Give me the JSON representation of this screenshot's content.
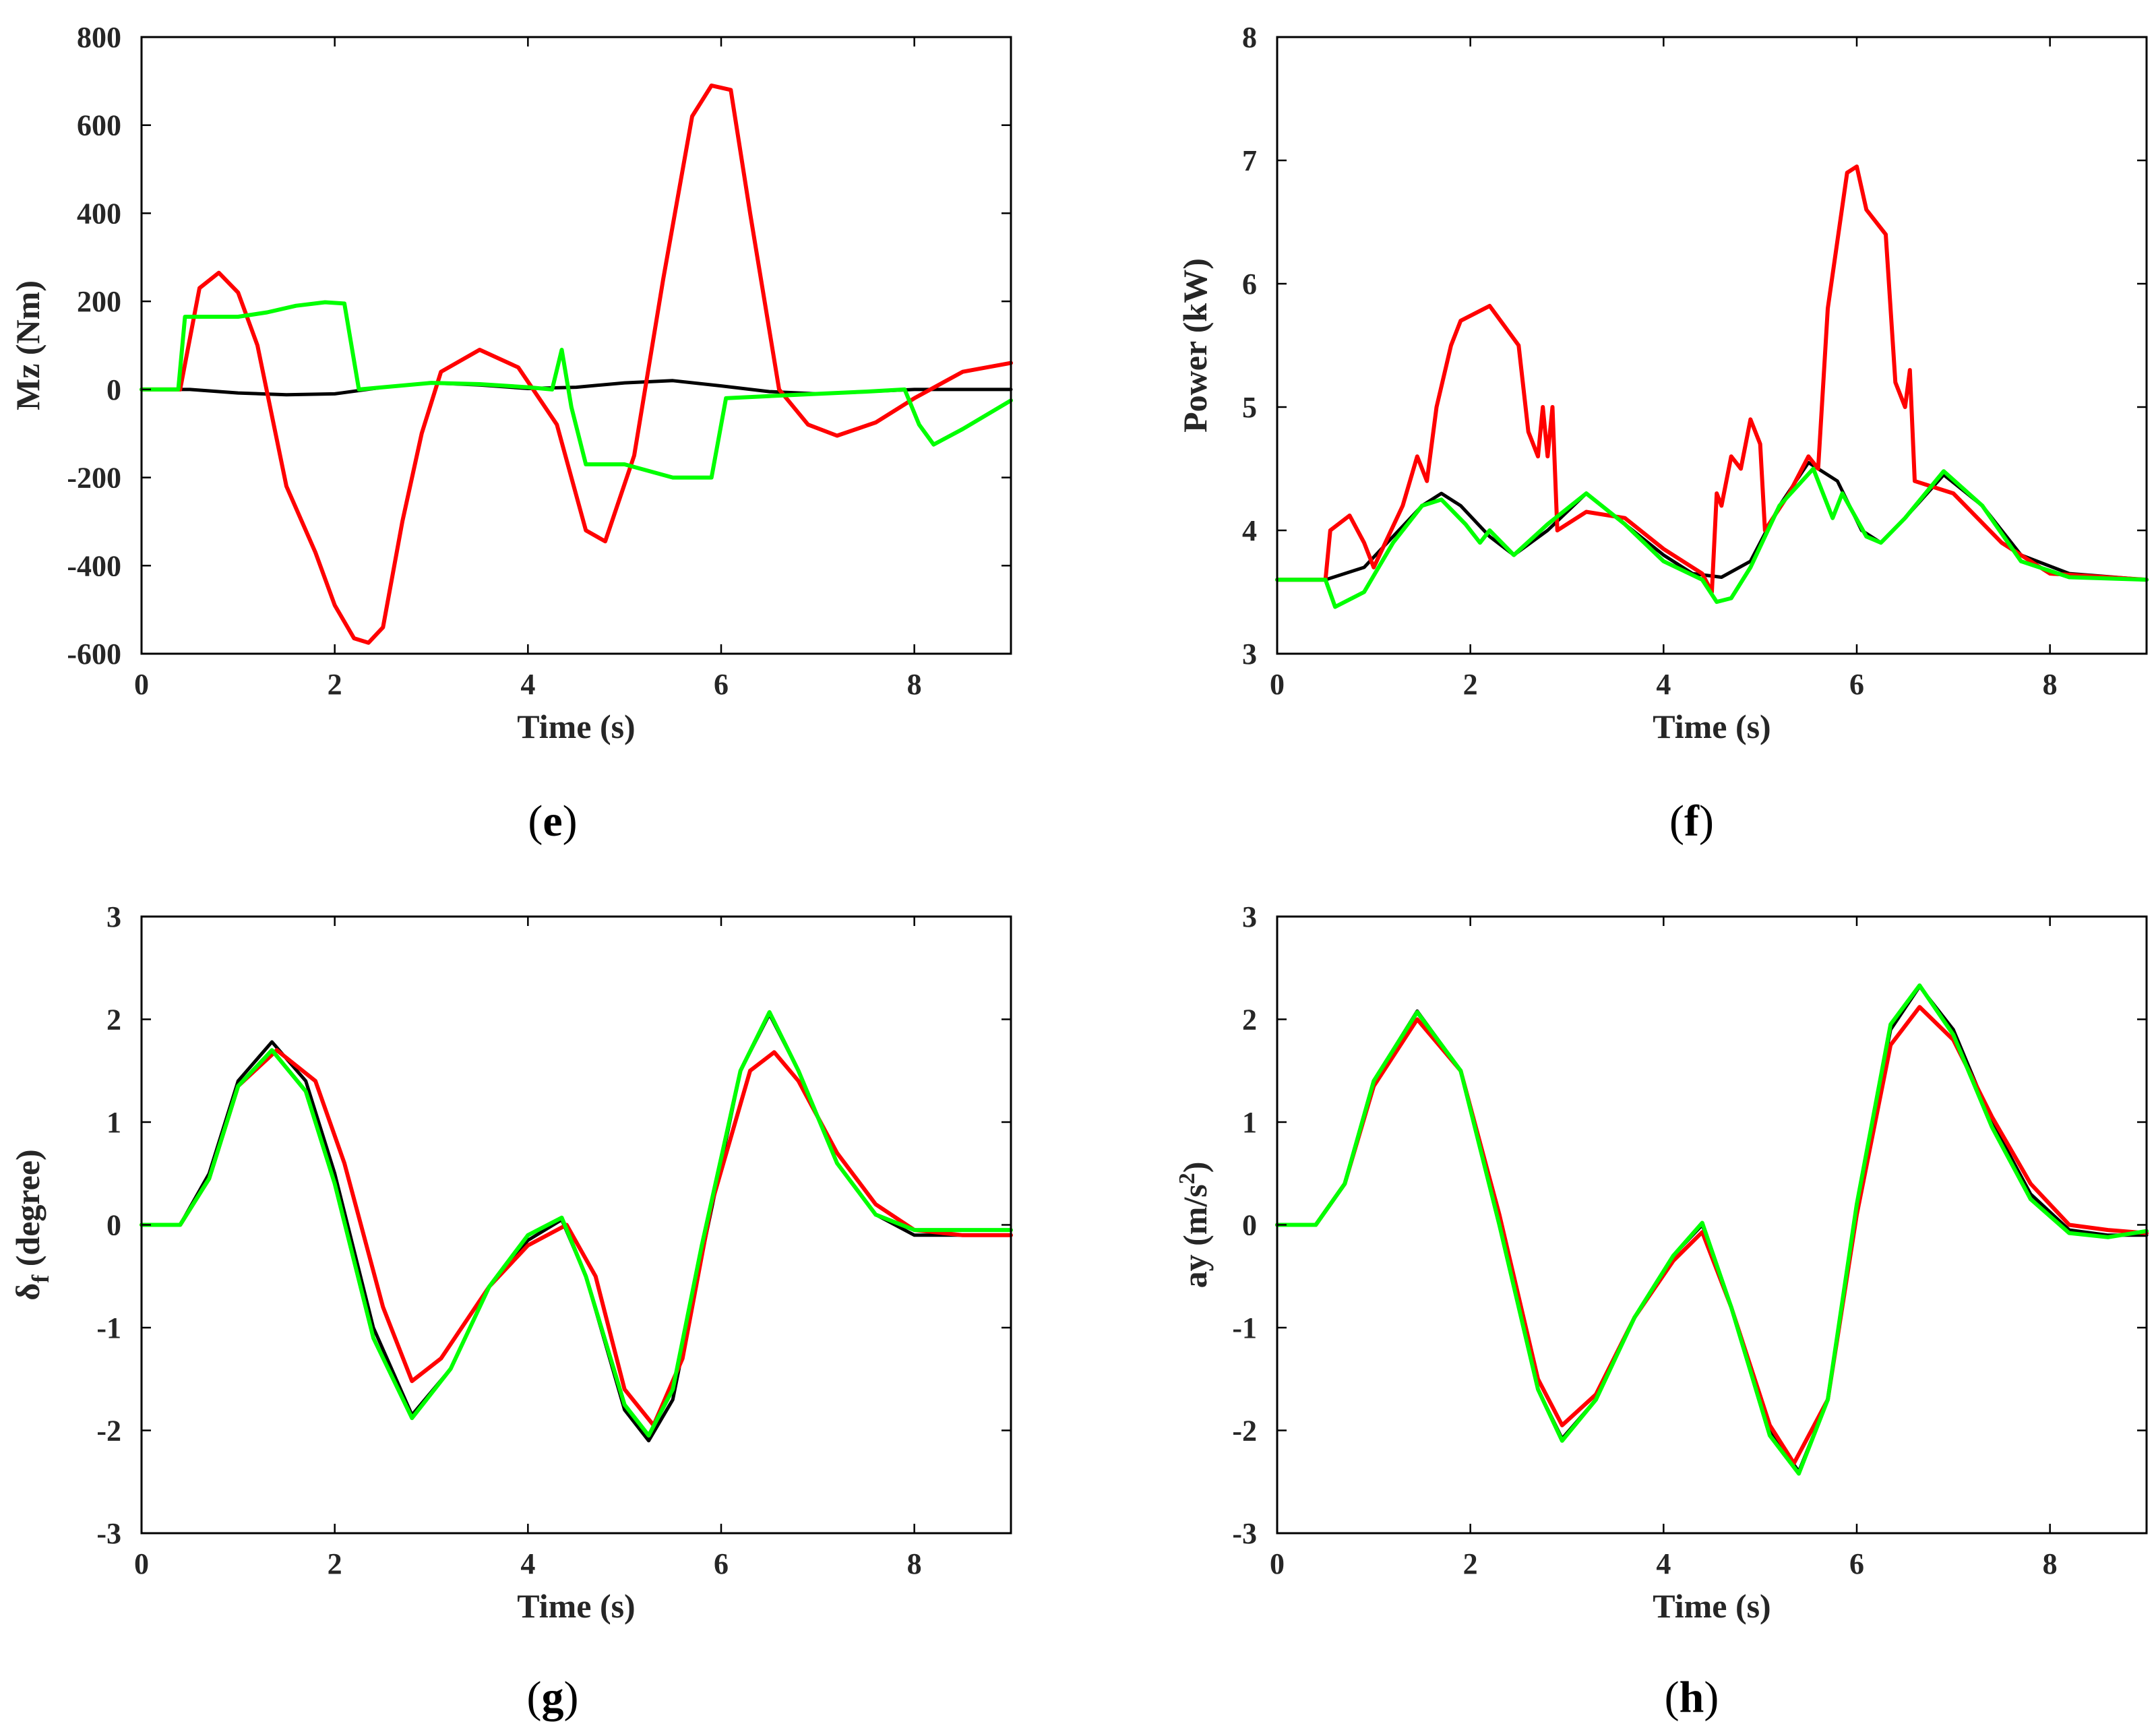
{
  "chart_data": [
    {
      "type": "line",
      "panel": "e",
      "xlabel": "Time (s)",
      "ylabel": "Mz (Nm)",
      "xlim": [
        0,
        9
      ],
      "ylim": [
        -600,
        800
      ],
      "xticks": [
        0,
        2,
        4,
        6,
        8
      ],
      "yticks": [
        -600,
        -400,
        -200,
        0,
        200,
        400,
        600,
        800
      ],
      "series": [
        {
          "name": "black",
          "color": "#000000",
          "x": [
            0,
            0.5,
            1,
            1.5,
            2,
            2.5,
            3,
            3.5,
            4,
            4.5,
            5,
            5.5,
            6,
            6.5,
            7,
            7.5,
            8,
            8.5,
            9
          ],
          "y": [
            0,
            0,
            -8,
            -12,
            -10,
            5,
            15,
            10,
            2,
            5,
            15,
            20,
            8,
            -5,
            -10,
            -5,
            0,
            0,
            0
          ]
        },
        {
          "name": "red",
          "color": "#ff0000",
          "x": [
            0,
            0.4,
            0.6,
            0.8,
            1.0,
            1.2,
            1.5,
            1.8,
            2.0,
            2.2,
            2.35,
            2.5,
            2.7,
            2.9,
            3.1,
            3.5,
            3.9,
            4.3,
            4.6,
            4.8,
            5.1,
            5.4,
            5.7,
            5.9,
            6.1,
            6.3,
            6.6,
            6.9,
            7.2,
            7.6,
            8.0,
            8.5,
            9.0
          ],
          "y": [
            0,
            0,
            230,
            265,
            220,
            100,
            -220,
            -370,
            -490,
            -565,
            -575,
            -540,
            -300,
            -100,
            40,
            90,
            50,
            -80,
            -320,
            -345,
            -150,
            250,
            620,
            690,
            680,
            400,
            0,
            -80,
            -105,
            -75,
            -20,
            40,
            60
          ]
        },
        {
          "name": "green",
          "color": "#00ff00",
          "x": [
            0,
            0.38,
            0.45,
            1.0,
            1.3,
            1.6,
            1.9,
            2.1,
            2.25,
            2.5,
            3.0,
            3.5,
            4.0,
            4.25,
            4.35,
            4.45,
            4.6,
            5.0,
            5.5,
            5.9,
            6.05,
            6.5,
            7.0,
            7.5,
            7.9,
            8.05,
            8.2,
            8.5,
            9.0
          ],
          "y": [
            0,
            0,
            165,
            165,
            175,
            190,
            198,
            195,
            0,
            5,
            15,
            12,
            5,
            0,
            90,
            -40,
            -170,
            -170,
            -200,
            -200,
            -20,
            -15,
            -10,
            -5,
            0,
            -80,
            -125,
            -90,
            -25
          ]
        }
      ]
    },
    {
      "type": "line",
      "panel": "f",
      "xlabel": "Time (s)",
      "ylabel": "Power (kW)",
      "xlim": [
        0,
        9
      ],
      "ylim": [
        3,
        8
      ],
      "xticks": [
        0,
        2,
        4,
        6,
        8
      ],
      "yticks": [
        3,
        4,
        5,
        6,
        7,
        8
      ],
      "series": [
        {
          "name": "black",
          "color": "#000000",
          "x": [
            0,
            0.5,
            0.9,
            1.2,
            1.5,
            1.7,
            1.9,
            2.2,
            2.45,
            2.8,
            3.2,
            3.6,
            4.0,
            4.3,
            4.6,
            4.9,
            5.2,
            5.5,
            5.8,
            6.05,
            6.25,
            6.5,
            6.9,
            7.3,
            7.7,
            8.2,
            9.0
          ],
          "y": [
            3.6,
            3.6,
            3.7,
            3.95,
            4.2,
            4.3,
            4.2,
            3.95,
            3.8,
            4.0,
            4.3,
            4.05,
            3.8,
            3.65,
            3.62,
            3.75,
            4.2,
            4.55,
            4.4,
            4.0,
            3.9,
            4.1,
            4.45,
            4.2,
            3.8,
            3.65,
            3.6
          ]
        },
        {
          "name": "red",
          "color": "#ff0000",
          "x": [
            0,
            0.5,
            0.55,
            0.75,
            0.9,
            1.0,
            1.3,
            1.45,
            1.55,
            1.65,
            1.8,
            1.9,
            2.2,
            2.5,
            2.6,
            2.7,
            2.75,
            2.8,
            2.85,
            2.9,
            3.2,
            3.6,
            4.0,
            4.4,
            4.5,
            4.55,
            4.6,
            4.7,
            4.8,
            4.9,
            5.0,
            5.05,
            5.3,
            5.5,
            5.6,
            5.7,
            5.9,
            6.0,
            6.1,
            6.3,
            6.4,
            6.5,
            6.55,
            6.6,
            7.0,
            7.5,
            8.0,
            9.0
          ],
          "y": [
            3.6,
            3.6,
            4.0,
            4.12,
            3.9,
            3.7,
            4.2,
            4.6,
            4.4,
            5.0,
            5.5,
            5.7,
            5.82,
            5.5,
            4.8,
            4.6,
            5.0,
            4.6,
            5.0,
            4.0,
            4.15,
            4.1,
            3.85,
            3.65,
            3.5,
            4.3,
            4.2,
            4.6,
            4.5,
            4.9,
            4.7,
            4.0,
            4.3,
            4.6,
            4.5,
            5.8,
            6.9,
            6.95,
            6.6,
            6.4,
            5.2,
            5.0,
            5.3,
            4.4,
            4.3,
            3.9,
            3.65,
            3.6
          ]
        },
        {
          "name": "green",
          "color": "#00ff00",
          "x": [
            0,
            0.5,
            0.6,
            0.9,
            1.2,
            1.5,
            1.7,
            1.95,
            2.1,
            2.2,
            2.45,
            2.8,
            3.2,
            3.6,
            4.0,
            4.4,
            4.55,
            4.7,
            4.9,
            5.2,
            5.55,
            5.75,
            5.85,
            6.1,
            6.25,
            6.5,
            6.9,
            7.3,
            7.7,
            8.2,
            9.0
          ],
          "y": [
            3.6,
            3.6,
            3.38,
            3.5,
            3.9,
            4.2,
            4.25,
            4.05,
            3.9,
            4.0,
            3.8,
            4.05,
            4.3,
            4.05,
            3.75,
            3.6,
            3.42,
            3.45,
            3.7,
            4.2,
            4.5,
            4.1,
            4.3,
            3.95,
            3.9,
            4.1,
            4.48,
            4.2,
            3.75,
            3.62,
            3.6
          ]
        }
      ]
    },
    {
      "type": "line",
      "panel": "g",
      "xlabel": "Time (s)",
      "ylabel": "δf (degree)",
      "ylabel_main": "δ",
      "ylabel_sub": "f",
      "ylabel_rest": " (degree)",
      "xlim": [
        0,
        9
      ],
      "ylim": [
        -3,
        3
      ],
      "xticks": [
        0,
        2,
        4,
        6,
        8
      ],
      "yticks": [
        -3,
        -2,
        -1,
        0,
        1,
        2,
        3
      ],
      "series": [
        {
          "name": "black",
          "color": "#000000",
          "x": [
            0,
            0.4,
            0.7,
            1.0,
            1.35,
            1.7,
            2.0,
            2.4,
            2.8,
            3.2,
            3.6,
            4.0,
            4.35,
            4.6,
            5.0,
            5.25,
            5.5,
            5.8,
            6.2,
            6.5,
            6.8,
            7.2,
            7.6,
            8.0,
            8.5,
            9.0
          ],
          "y": [
            0,
            0,
            0.5,
            1.4,
            1.78,
            1.4,
            0.5,
            -1.0,
            -1.85,
            -1.4,
            -0.6,
            -0.15,
            0.05,
            -0.5,
            -1.8,
            -2.1,
            -1.7,
            -0.3,
            1.5,
            2.05,
            1.5,
            0.6,
            0.1,
            -0.1,
            -0.1,
            -0.1
          ]
        },
        {
          "name": "red",
          "color": "#ff0000",
          "x": [
            0,
            0.4,
            0.7,
            1.0,
            1.4,
            1.8,
            2.1,
            2.5,
            2.8,
            3.1,
            3.6,
            4.0,
            4.4,
            4.7,
            5.0,
            5.3,
            5.6,
            5.9,
            6.3,
            6.55,
            6.8,
            7.2,
            7.6,
            8.0,
            8.5,
            9.0
          ],
          "y": [
            0,
            0,
            0.45,
            1.35,
            1.7,
            1.4,
            0.6,
            -0.8,
            -1.52,
            -1.3,
            -0.6,
            -0.2,
            0.0,
            -0.5,
            -1.6,
            -1.95,
            -1.3,
            0.2,
            1.5,
            1.68,
            1.4,
            0.7,
            0.2,
            -0.05,
            -0.1,
            -0.1
          ]
        },
        {
          "name": "green",
          "color": "#00ff00",
          "x": [
            0,
            0.4,
            0.7,
            1.0,
            1.35,
            1.7,
            2.0,
            2.4,
            2.8,
            3.2,
            3.6,
            4.0,
            4.35,
            4.6,
            5.0,
            5.25,
            5.5,
            5.8,
            6.2,
            6.5,
            6.8,
            7.2,
            7.6,
            8.0,
            8.5,
            9.0
          ],
          "y": [
            0,
            0,
            0.45,
            1.35,
            1.7,
            1.3,
            0.4,
            -1.1,
            -1.88,
            -1.4,
            -0.6,
            -0.1,
            0.07,
            -0.5,
            -1.75,
            -2.05,
            -1.6,
            -0.2,
            1.5,
            2.07,
            1.5,
            0.6,
            0.1,
            -0.05,
            -0.05,
            -0.05
          ]
        }
      ]
    },
    {
      "type": "line",
      "panel": "h",
      "xlabel": "Time (s)",
      "ylabel": "ay (m/s2)",
      "ylabel_main": "ay (m/s",
      "ylabel_sup": "2",
      "ylabel_rest": ")",
      "xlim": [
        0,
        9
      ],
      "ylim": [
        -3,
        3
      ],
      "xticks": [
        0,
        2,
        4,
        6,
        8
      ],
      "yticks": [
        -3,
        -2,
        -1,
        0,
        1,
        2,
        3
      ],
      "series": [
        {
          "name": "black",
          "color": "#000000",
          "x": [
            0,
            0.4,
            0.7,
            1.0,
            1.45,
            1.9,
            2.3,
            2.7,
            2.95,
            3.3,
            3.7,
            4.1,
            4.4,
            4.7,
            5.1,
            5.4,
            5.7,
            6.0,
            6.35,
            6.65,
            7.0,
            7.4,
            7.8,
            8.2,
            8.6,
            9.0
          ],
          "y": [
            0,
            0,
            0.4,
            1.4,
            2.08,
            1.5,
            0.0,
            -1.6,
            -2.08,
            -1.7,
            -0.9,
            -0.3,
            0.0,
            -0.8,
            -2.0,
            -2.4,
            -1.7,
            0.2,
            1.9,
            2.32,
            1.9,
            1.0,
            0.3,
            -0.05,
            -0.1,
            -0.1
          ]
        },
        {
          "name": "red",
          "color": "#ff0000",
          "x": [
            0,
            0.4,
            0.7,
            1.0,
            1.45,
            1.9,
            2.3,
            2.7,
            2.95,
            3.3,
            3.7,
            4.1,
            4.4,
            4.7,
            5.1,
            5.35,
            5.7,
            6.0,
            6.35,
            6.65,
            7.0,
            7.4,
            7.8,
            8.2,
            8.6,
            9.0
          ],
          "y": [
            0,
            0,
            0.4,
            1.35,
            2.0,
            1.5,
            0.1,
            -1.5,
            -1.95,
            -1.65,
            -0.9,
            -0.35,
            -0.07,
            -0.8,
            -1.95,
            -2.32,
            -1.7,
            0.1,
            1.75,
            2.12,
            1.8,
            1.05,
            0.4,
            0.0,
            -0.05,
            -0.08
          ]
        },
        {
          "name": "green",
          "color": "#00ff00",
          "x": [
            0,
            0.4,
            0.7,
            1.0,
            1.45,
            1.9,
            2.3,
            2.7,
            2.95,
            3.3,
            3.7,
            4.1,
            4.4,
            4.7,
            5.1,
            5.4,
            5.7,
            6.0,
            6.35,
            6.65,
            7.0,
            7.4,
            7.8,
            8.2,
            8.6,
            9.0
          ],
          "y": [
            0,
            0,
            0.4,
            1.4,
            2.07,
            1.5,
            0.0,
            -1.6,
            -2.1,
            -1.7,
            -0.9,
            -0.3,
            0.02,
            -0.8,
            -2.05,
            -2.42,
            -1.7,
            0.2,
            1.95,
            2.33,
            1.85,
            0.95,
            0.25,
            -0.08,
            -0.12,
            -0.06
          ]
        }
      ]
    }
  ]
}
